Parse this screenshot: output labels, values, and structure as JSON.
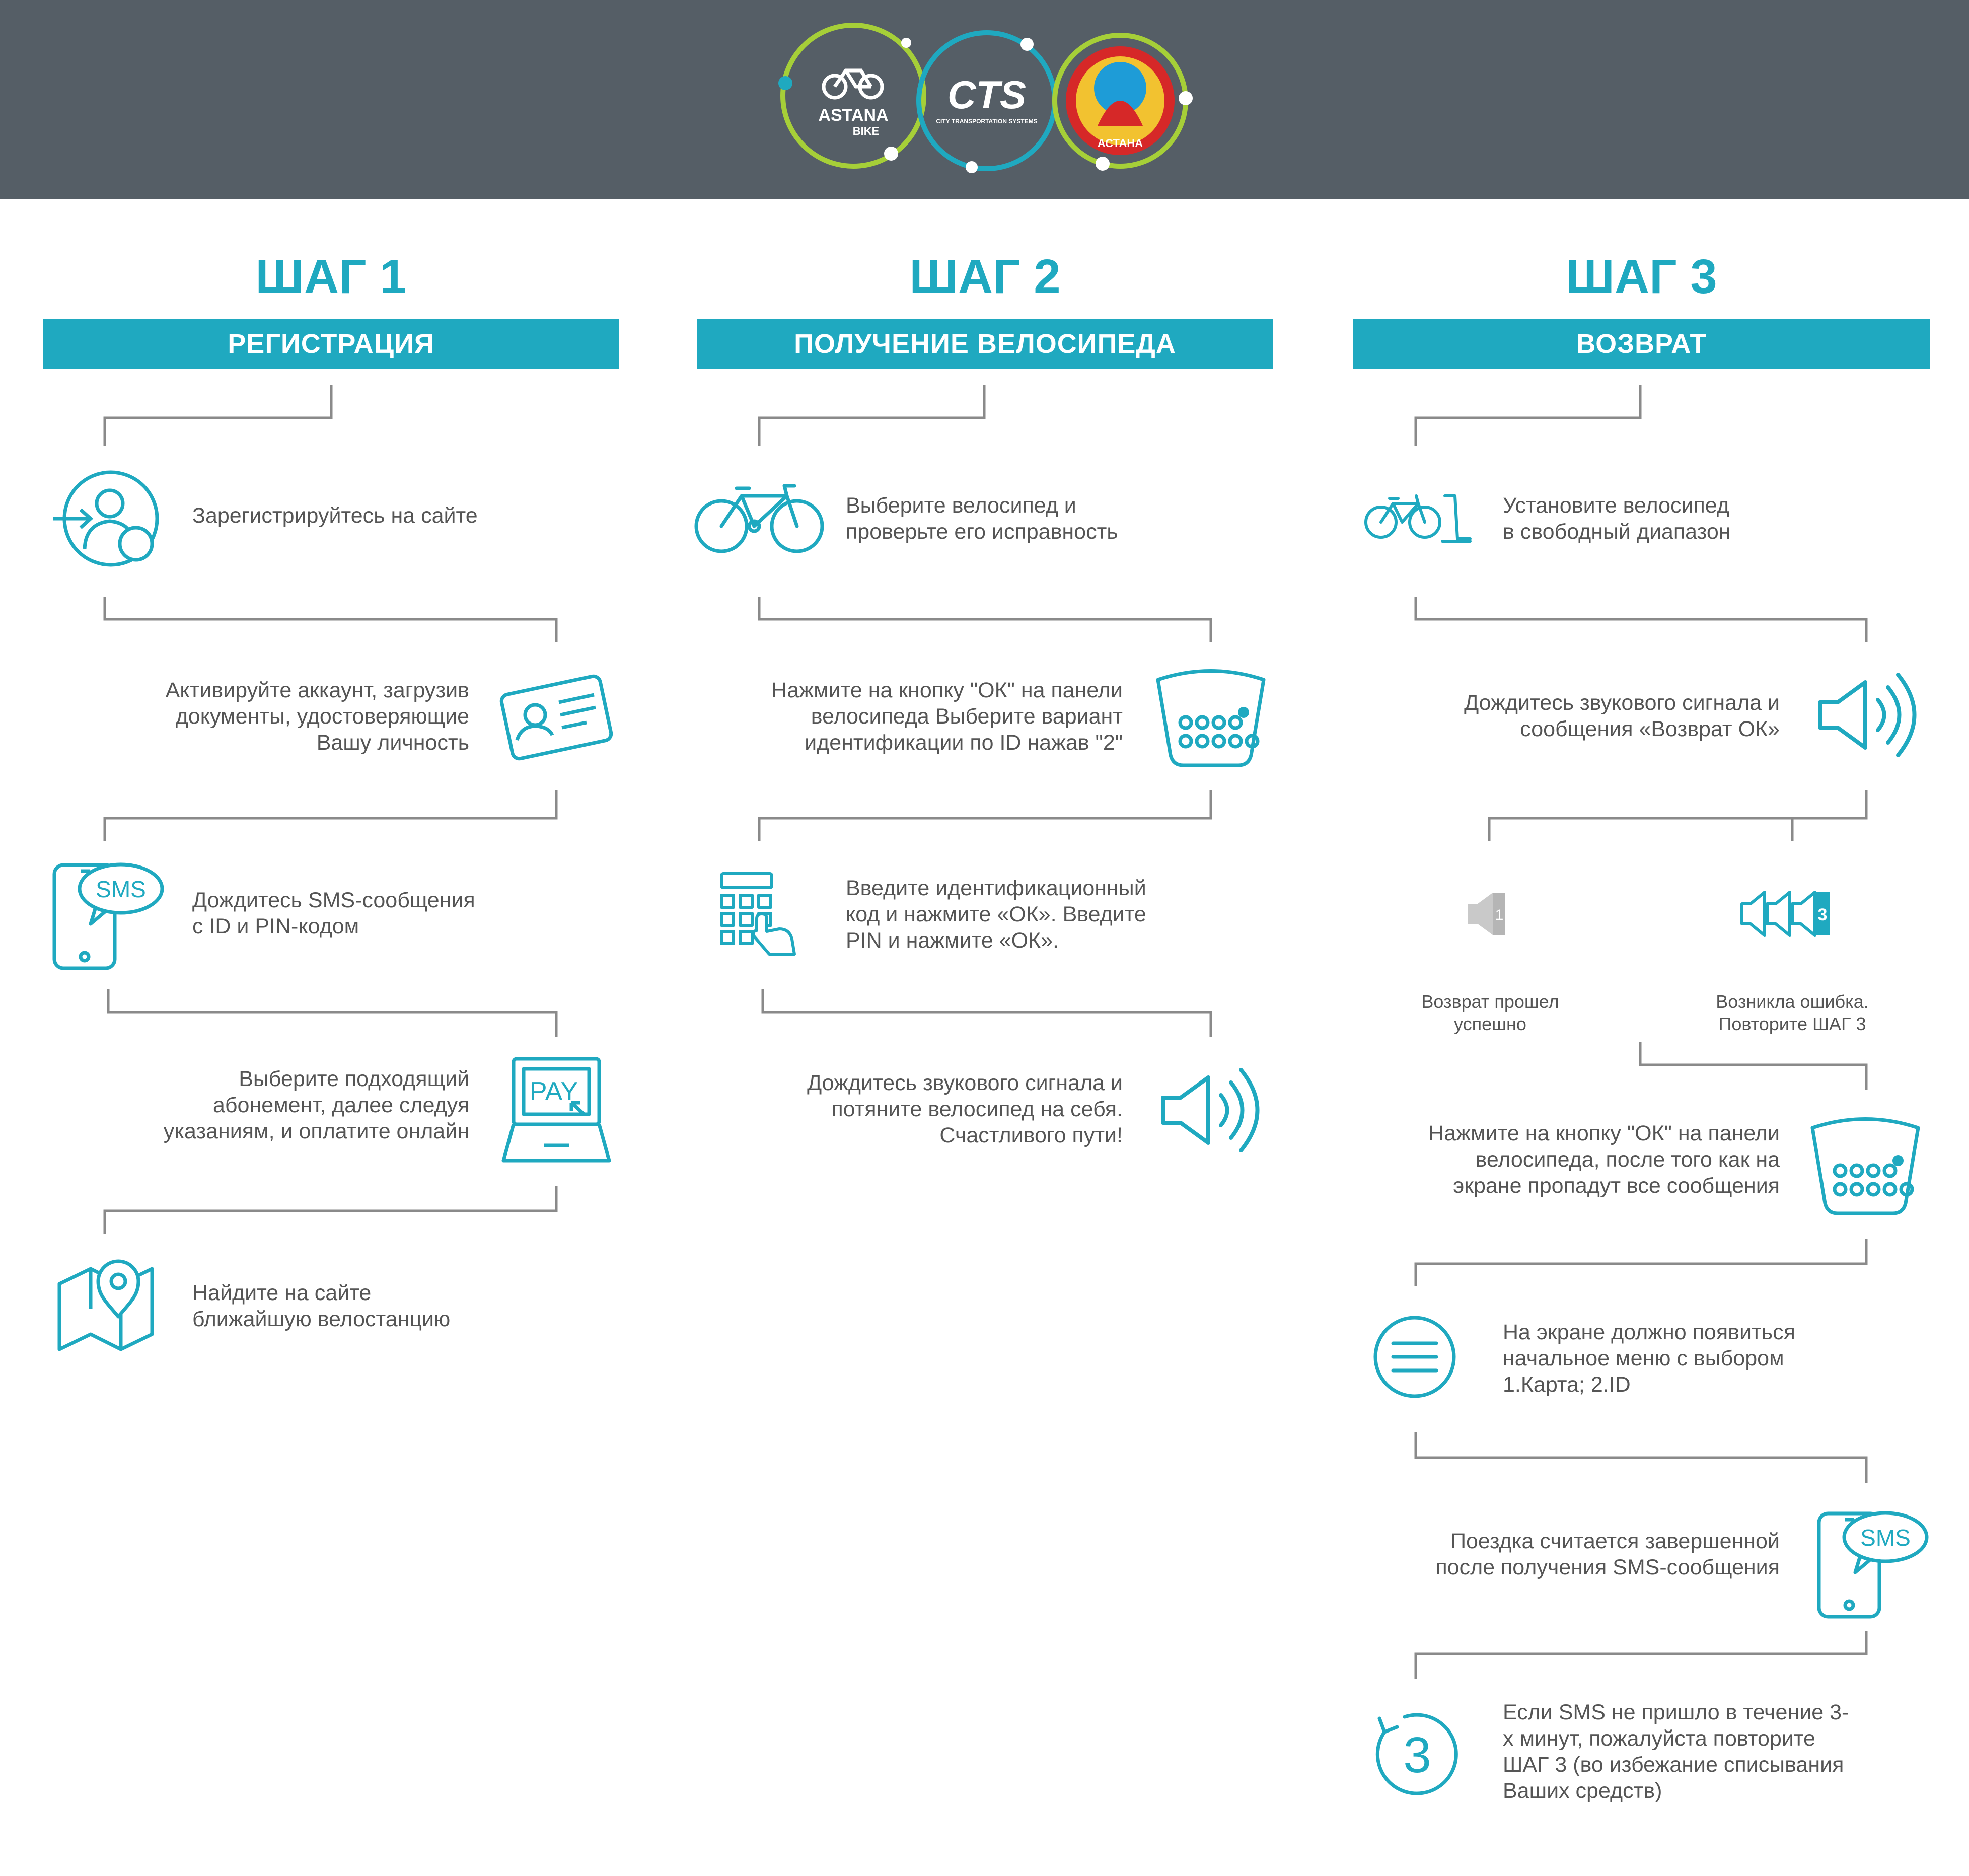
{
  "header": {
    "logos": [
      {
        "name": "astana-bike-logo",
        "text": "ASTANA",
        "subtext": "BIKE"
      },
      {
        "name": "cts-logo",
        "text": "CTS",
        "subtext": "CITY TRANSPORTATION SYSTEMS"
      },
      {
        "name": "astana-emblem",
        "text": "АСТАНА"
      }
    ]
  },
  "colors": {
    "accent": "#1fa9c0",
    "header_bg": "#555e66",
    "text": "#555555",
    "lines": "#8a8a8a"
  },
  "steps": [
    {
      "title": "ШАГ 1",
      "subtitle": "РЕГИСТРАЦИЯ",
      "items": [
        {
          "icon": "user-login-icon",
          "lines": [
            "Зарегистрируйтесь на сайте"
          ]
        },
        {
          "icon": "id-card-icon",
          "lines": [
            "Активируйте аккаунт, загрузив",
            "документы, удостоверяющие",
            "Вашу личность"
          ]
        },
        {
          "icon": "sms-phone-icon",
          "icon_label": "SMS",
          "lines": [
            "Дождитесь SMS-сообщения",
            "с ID и PIN-кодом"
          ]
        },
        {
          "icon": "pay-laptop-icon",
          "icon_label": "PAY",
          "lines": [
            "Выберите подходящий",
            "абонемент, далее следуя",
            "указаниям, и оплатите онлайн"
          ]
        },
        {
          "icon": "map-pin-icon",
          "lines": [
            "Найдите на сайте",
            "ближайшую  велостанцию"
          ]
        }
      ]
    },
    {
      "title": "ШАГ 2",
      "subtitle": "ПОЛУЧЕНИЕ ВЕЛОСИПЕДА",
      "items": [
        {
          "icon": "bicycle-icon",
          "lines": [
            "Выберите велосипед и",
            "проверьте его исправность"
          ]
        },
        {
          "icon": "bike-panel-icon",
          "lines": [
            "Нажмите на кнопку \"ОК\" на панели",
            "велосипеда Выберите вариант",
            "идентификации по ID нажав \"2\""
          ]
        },
        {
          "icon": "keypad-hand-icon",
          "lines": [
            "Введите идентификационный",
            "код и нажмите «ОК».  Введите",
            "PIN и нажмите «ОК»."
          ]
        },
        {
          "icon": "sound-icon",
          "lines": [
            "Дождитесь звукового сигнала и",
            "потяните велосипед на себя.",
            "Счастливого пути!"
          ]
        }
      ]
    },
    {
      "title": "ШАГ 3",
      "subtitle": "ВОЗВРАТ",
      "items": [
        {
          "icon": "bike-dock-icon",
          "lines": [
            "Установите велосипед",
            "в свободный диапазон"
          ]
        },
        {
          "icon": "sound-icon",
          "lines": [
            "Дождитесь звукового сигнала и",
            "сообщения «Возврат ОК»"
          ]
        },
        {
          "icon": "speaker-one-icon",
          "icon_label": "1",
          "lines": [
            "Возврат прошел",
            "успешно"
          ]
        },
        {
          "icon": "speaker-three-icon",
          "icon_label": "3",
          "lines": [
            "Возникла ошибка.",
            "Повторите ШАГ 3"
          ]
        },
        {
          "icon": "bike-panel-icon",
          "lines": [
            "Нажмите на кнопку \"ОК\"  на панели",
            "велосипеда, после того как на",
            "экране пропадут все сообщения"
          ]
        },
        {
          "icon": "menu-icon",
          "lines": [
            "На экране должно появиться",
            "начальное меню с выбором",
            "1.Карта; 2.ID"
          ]
        },
        {
          "icon": "sms-phone-icon",
          "icon_label": "SMS",
          "lines": [
            "Поездка считается завершенной",
            "после получения  SMS-сообщения"
          ]
        },
        {
          "icon": "timer-three-icon",
          "icon_label": "3",
          "lines": [
            "Если SMS не пришло в течение 3-",
            "х минут, пожалуйста повторите",
            "ШАГ 3 (во избежание списывания",
            "Ваших средств)"
          ]
        }
      ]
    }
  ]
}
